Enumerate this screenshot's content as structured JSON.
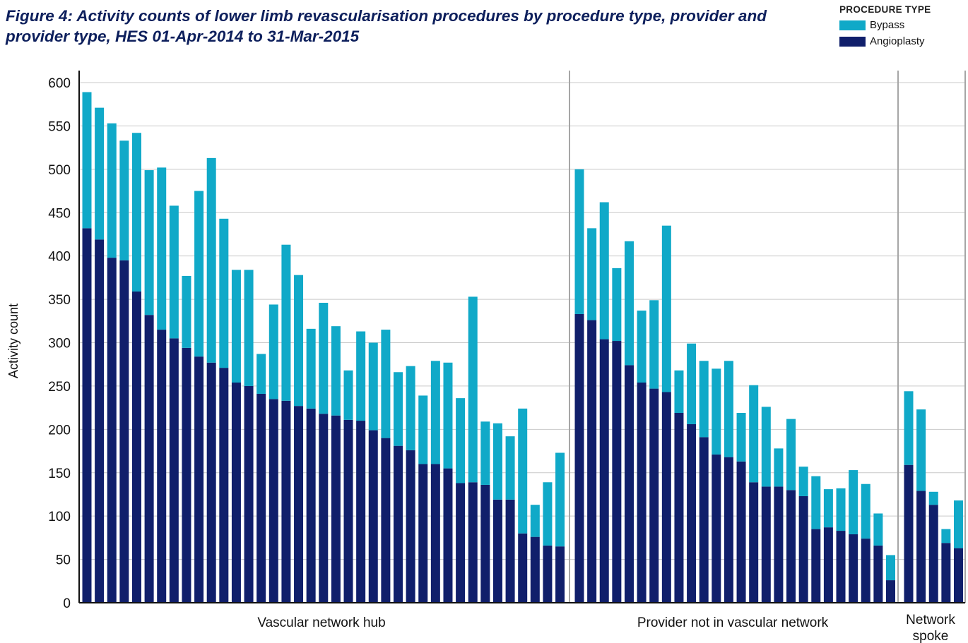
{
  "title": "Figure 4: Activity counts of lower limb revascularisation procedures by procedure type, provider and provider type, HES 01-Apr-2014 to 31-Mar-2015",
  "colors": {
    "bypass": "#10a9c8",
    "angioplasty": "#101f6b"
  },
  "legend": {
    "title": "PROCEDURE TYPE",
    "items": [
      "Bypass",
      "Angioplasty"
    ]
  },
  "chart_data": {
    "type": "bar",
    "stacked": true,
    "ylabel": "Activity count",
    "ylim": [
      0,
      610
    ],
    "yticks": [
      0,
      50,
      100,
      150,
      200,
      250,
      300,
      350,
      400,
      450,
      500,
      550,
      600
    ],
    "grid": "horizontal",
    "legend_position": "top-right",
    "groups": [
      {
        "label": "Vascular network hub",
        "angioplasty": [
          432,
          419,
          398,
          395,
          359,
          332,
          315,
          305,
          294,
          284,
          277,
          271,
          254,
          250,
          241,
          235,
          233,
          227,
          224,
          218,
          216,
          211,
          210,
          199,
          190,
          181,
          176,
          160,
          160,
          155,
          138,
          139,
          136,
          119,
          119,
          80,
          76,
          66,
          65
        ],
        "bypass": [
          157,
          152,
          155,
          138,
          183,
          167,
          187,
          153,
          83,
          191,
          236,
          172,
          130,
          134,
          46,
          109,
          180,
          151,
          92,
          128,
          103,
          57,
          103,
          101,
          125,
          85,
          97,
          79,
          119,
          122,
          98,
          214,
          73,
          88,
          73,
          144,
          37,
          73,
          108
        ]
      },
      {
        "label": "Provider not in vascular network",
        "angioplasty": [
          333,
          326,
          304,
          302,
          274,
          254,
          247,
          243,
          219,
          206,
          191,
          171,
          168,
          163,
          139,
          134,
          134,
          130,
          123,
          85,
          87,
          83,
          79,
          74,
          66,
          26
        ],
        "bypass": [
          167,
          106,
          158,
          84,
          143,
          83,
          102,
          192,
          49,
          93,
          88,
          99,
          111,
          56,
          112,
          92,
          44,
          82,
          34,
          61,
          44,
          49,
          74,
          63,
          37,
          29
        ]
      },
      {
        "label": "Network spoke",
        "angioplasty": [
          159,
          129,
          113,
          69,
          63
        ],
        "bypass": [
          85,
          94,
          15,
          16,
          55
        ]
      }
    ]
  }
}
